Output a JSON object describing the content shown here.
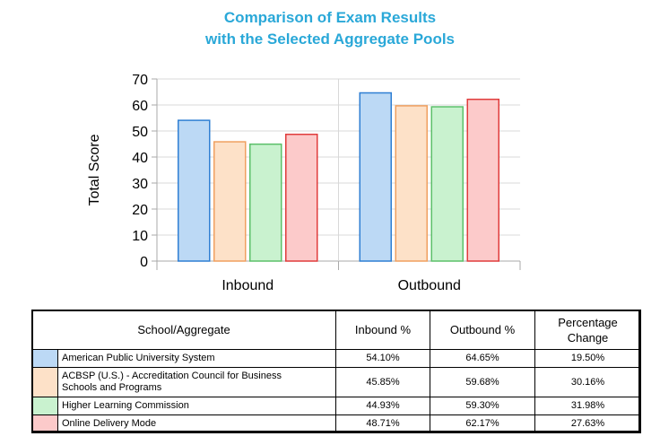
{
  "title_lines": [
    "Comparison of Exam Results",
    "with the Selected Aggregate Pools"
  ],
  "colors": {
    "title": "#2aa8d8",
    "series_fill": [
      "#bcd9f5",
      "#fde1c8",
      "#c9f2cf",
      "#fccaca"
    ],
    "series_stroke": [
      "#2f7fd3",
      "#f0a060",
      "#5cc06a",
      "#e03c3c"
    ]
  },
  "chart_data": {
    "type": "bar",
    "categories": [
      "Inbound",
      "Outbound"
    ],
    "ylabel": "Total Score",
    "ylim": [
      0,
      70
    ],
    "yticks": [
      "0",
      "10",
      "20",
      "30",
      "40",
      "50",
      "60",
      "70"
    ],
    "grid": "horizontal",
    "series": [
      {
        "name": "American Public University System",
        "values": [
          54.1,
          64.65
        ]
      },
      {
        "name": "ACBSP (U.S.) - Accreditation Council for Business Schools and Programs",
        "values": [
          45.85,
          59.68
        ]
      },
      {
        "name": "Higher Learning Commission",
        "values": [
          44.93,
          59.3
        ]
      },
      {
        "name": "Online Delivery Mode",
        "values": [
          48.71,
          62.17
        ]
      }
    ]
  },
  "table": {
    "headers": [
      "School/Aggregate",
      "Inbound %",
      "Outbound %",
      "Percentage Change"
    ],
    "rows": [
      {
        "name_lines": [
          "American Public University System"
        ],
        "inbound": "54.10%",
        "outbound": "64.65%",
        "change": "19.50%"
      },
      {
        "name_lines": [
          "ACBSP (U.S.) - Accreditation Council for Business",
          "Schools and Programs"
        ],
        "inbound": "45.85%",
        "outbound": "59.68%",
        "change": "30.16%"
      },
      {
        "name_lines": [
          "Higher Learning Commission"
        ],
        "inbound": "44.93%",
        "outbound": "59.30%",
        "change": "31.98%"
      },
      {
        "name_lines": [
          "Online Delivery Mode"
        ],
        "inbound": "48.71%",
        "outbound": "62.17%",
        "change": "27.63%"
      }
    ]
  }
}
